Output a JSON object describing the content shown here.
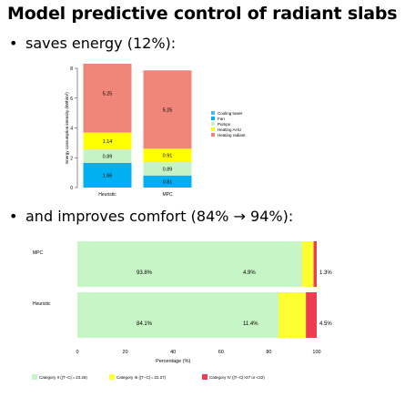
{
  "slide": {
    "title": "Model predictive control of radiant slabs",
    "bullets": [
      {
        "marker": "•",
        "text": "saves energy (12%):"
      },
      {
        "marker": "•",
        "text": "and improves comfort (84% → 94%):"
      }
    ]
  },
  "chart_data": [
    {
      "type": "bar",
      "stacked": true,
      "ylabel": "Energy consumption intensity (kWh/m²)",
      "ylim": [
        0,
        8
      ],
      "yticks": [
        0,
        2,
        4,
        6,
        8
      ],
      "categories": [
        "Heuristic",
        "MPC"
      ],
      "series": [
        {
          "name": "Cooling tower",
          "color": "#4bb6f0",
          "values": [
            0,
            0
          ],
          "labels": [
            "",
            ""
          ]
        },
        {
          "name": "Fan",
          "color": "#00b0f0",
          "values": [
            1.66,
            0.81
          ],
          "labels": [
            "1.66",
            "0.81"
          ]
        },
        {
          "name": "Pumps",
          "color": "#c6f3c6",
          "values": [
            0.89,
            0.89
          ],
          "labels": [
            "0.89",
            "0.89"
          ]
        },
        {
          "name": "Heating AHU",
          "color": "#ffff00",
          "values": [
            1.14,
            0.91
          ],
          "labels": [
            "1.14",
            "0.91"
          ]
        },
        {
          "name": "Heating radiant",
          "color": "#f0857a",
          "values": [
            5.25,
            5.25
          ],
          "labels": [
            "5.25",
            "5.25"
          ]
        }
      ],
      "legend_position": "right"
    },
    {
      "type": "bar",
      "orientation": "horizontal",
      "stacked": true,
      "xlabel": "Percentage (%)",
      "xlim": [
        0,
        100
      ],
      "xticks": [
        0,
        20,
        40,
        60,
        80,
        100
      ],
      "categories": [
        "MPC",
        "Heuristic"
      ],
      "series": [
        {
          "name": "Category II (|T−C| = 23.26)",
          "color": "#c6f5c6",
          "values": [
            93.8,
            84.1
          ],
          "labels": [
            "93.8%",
            "84.1%"
          ]
        },
        {
          "name": "Category III (|T−C| = 22.27)",
          "color": "#ffff33",
          "values": [
            4.9,
            11.4
          ],
          "labels": [
            "4.9%",
            "11.4%"
          ]
        },
        {
          "name": "Category IV (|T−C|>27 or <22)",
          "color": "#f03c50",
          "values": [
            1.3,
            4.5
          ],
          "labels": [
            "1.3%",
            "4.5%"
          ]
        }
      ],
      "legend_position": "bottom"
    }
  ]
}
